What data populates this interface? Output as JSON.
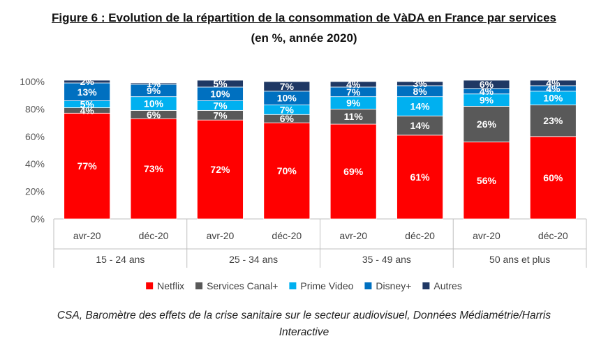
{
  "title": {
    "line1": "Figure 6 : Evolution de la répartition de la consommation de VàDA en France par services",
    "line2": "(en %, année 2020)"
  },
  "source": {
    "line1": "CSA, Baromètre des effets de la crise sanitaire sur le secteur audiovisuel, Données Médiamétrie/Harris",
    "line2": "Interactive"
  },
  "chart_data": {
    "type": "bar",
    "stacked": true,
    "y_tick_labels": [
      "0%",
      "20%",
      "40%",
      "60%",
      "80%",
      "100%"
    ],
    "ylim": [
      0,
      100
    ],
    "legend_position": "bottom",
    "groups": [
      "15 - 24 ans",
      "25 - 34 ans",
      "35 - 49 ans",
      "50 ans et plus"
    ],
    "categories": [
      "avr-20",
      "déc-20",
      "avr-20",
      "déc-20",
      "avr-20",
      "déc-20",
      "avr-20",
      "déc-20"
    ],
    "series": [
      {
        "name": "Netflix",
        "color": "#ff0000",
        "label_color": "#ffffff",
        "values": [
          77,
          73,
          72,
          70,
          69,
          61,
          56,
          60
        ],
        "labels": [
          "77%",
          "73%",
          "72%",
          "70%",
          "69%",
          "61%",
          "56%",
          "60%"
        ]
      },
      {
        "name": "Services Canal+",
        "color": "#595959",
        "label_color": "#ffffff",
        "values": [
          4,
          6,
          7,
          6,
          11,
          14,
          26,
          23
        ],
        "labels": [
          "4%",
          "6%",
          "7%",
          "6%",
          "11%",
          "14%",
          "26%",
          "23%"
        ]
      },
      {
        "name": "Prime Video",
        "color": "#00b0f0",
        "label_color": "#ffffff",
        "values": [
          5,
          10,
          7,
          7,
          9,
          14,
          9,
          10
        ],
        "labels": [
          "5%",
          "10%",
          "7%",
          "7%",
          "9%",
          "14%",
          "9%",
          "10%"
        ]
      },
      {
        "name": "Disney+",
        "color": "#0070c0",
        "label_color": "#ffffff",
        "values": [
          13,
          9,
          10,
          10,
          7,
          8,
          4,
          4
        ],
        "labels": [
          "13%",
          "9%",
          "10%",
          "10%",
          "7%",
          "8%",
          "4%",
          "4%"
        ]
      },
      {
        "name": "Autres",
        "color": "#1f3864",
        "label_color": "#ffffff",
        "values": [
          2,
          1,
          5,
          7,
          4,
          3,
          6,
          4
        ],
        "labels": [
          "2%",
          "1%",
          "5%",
          "7%",
          "4%",
          "3%",
          "6%",
          "4%"
        ]
      }
    ]
  }
}
